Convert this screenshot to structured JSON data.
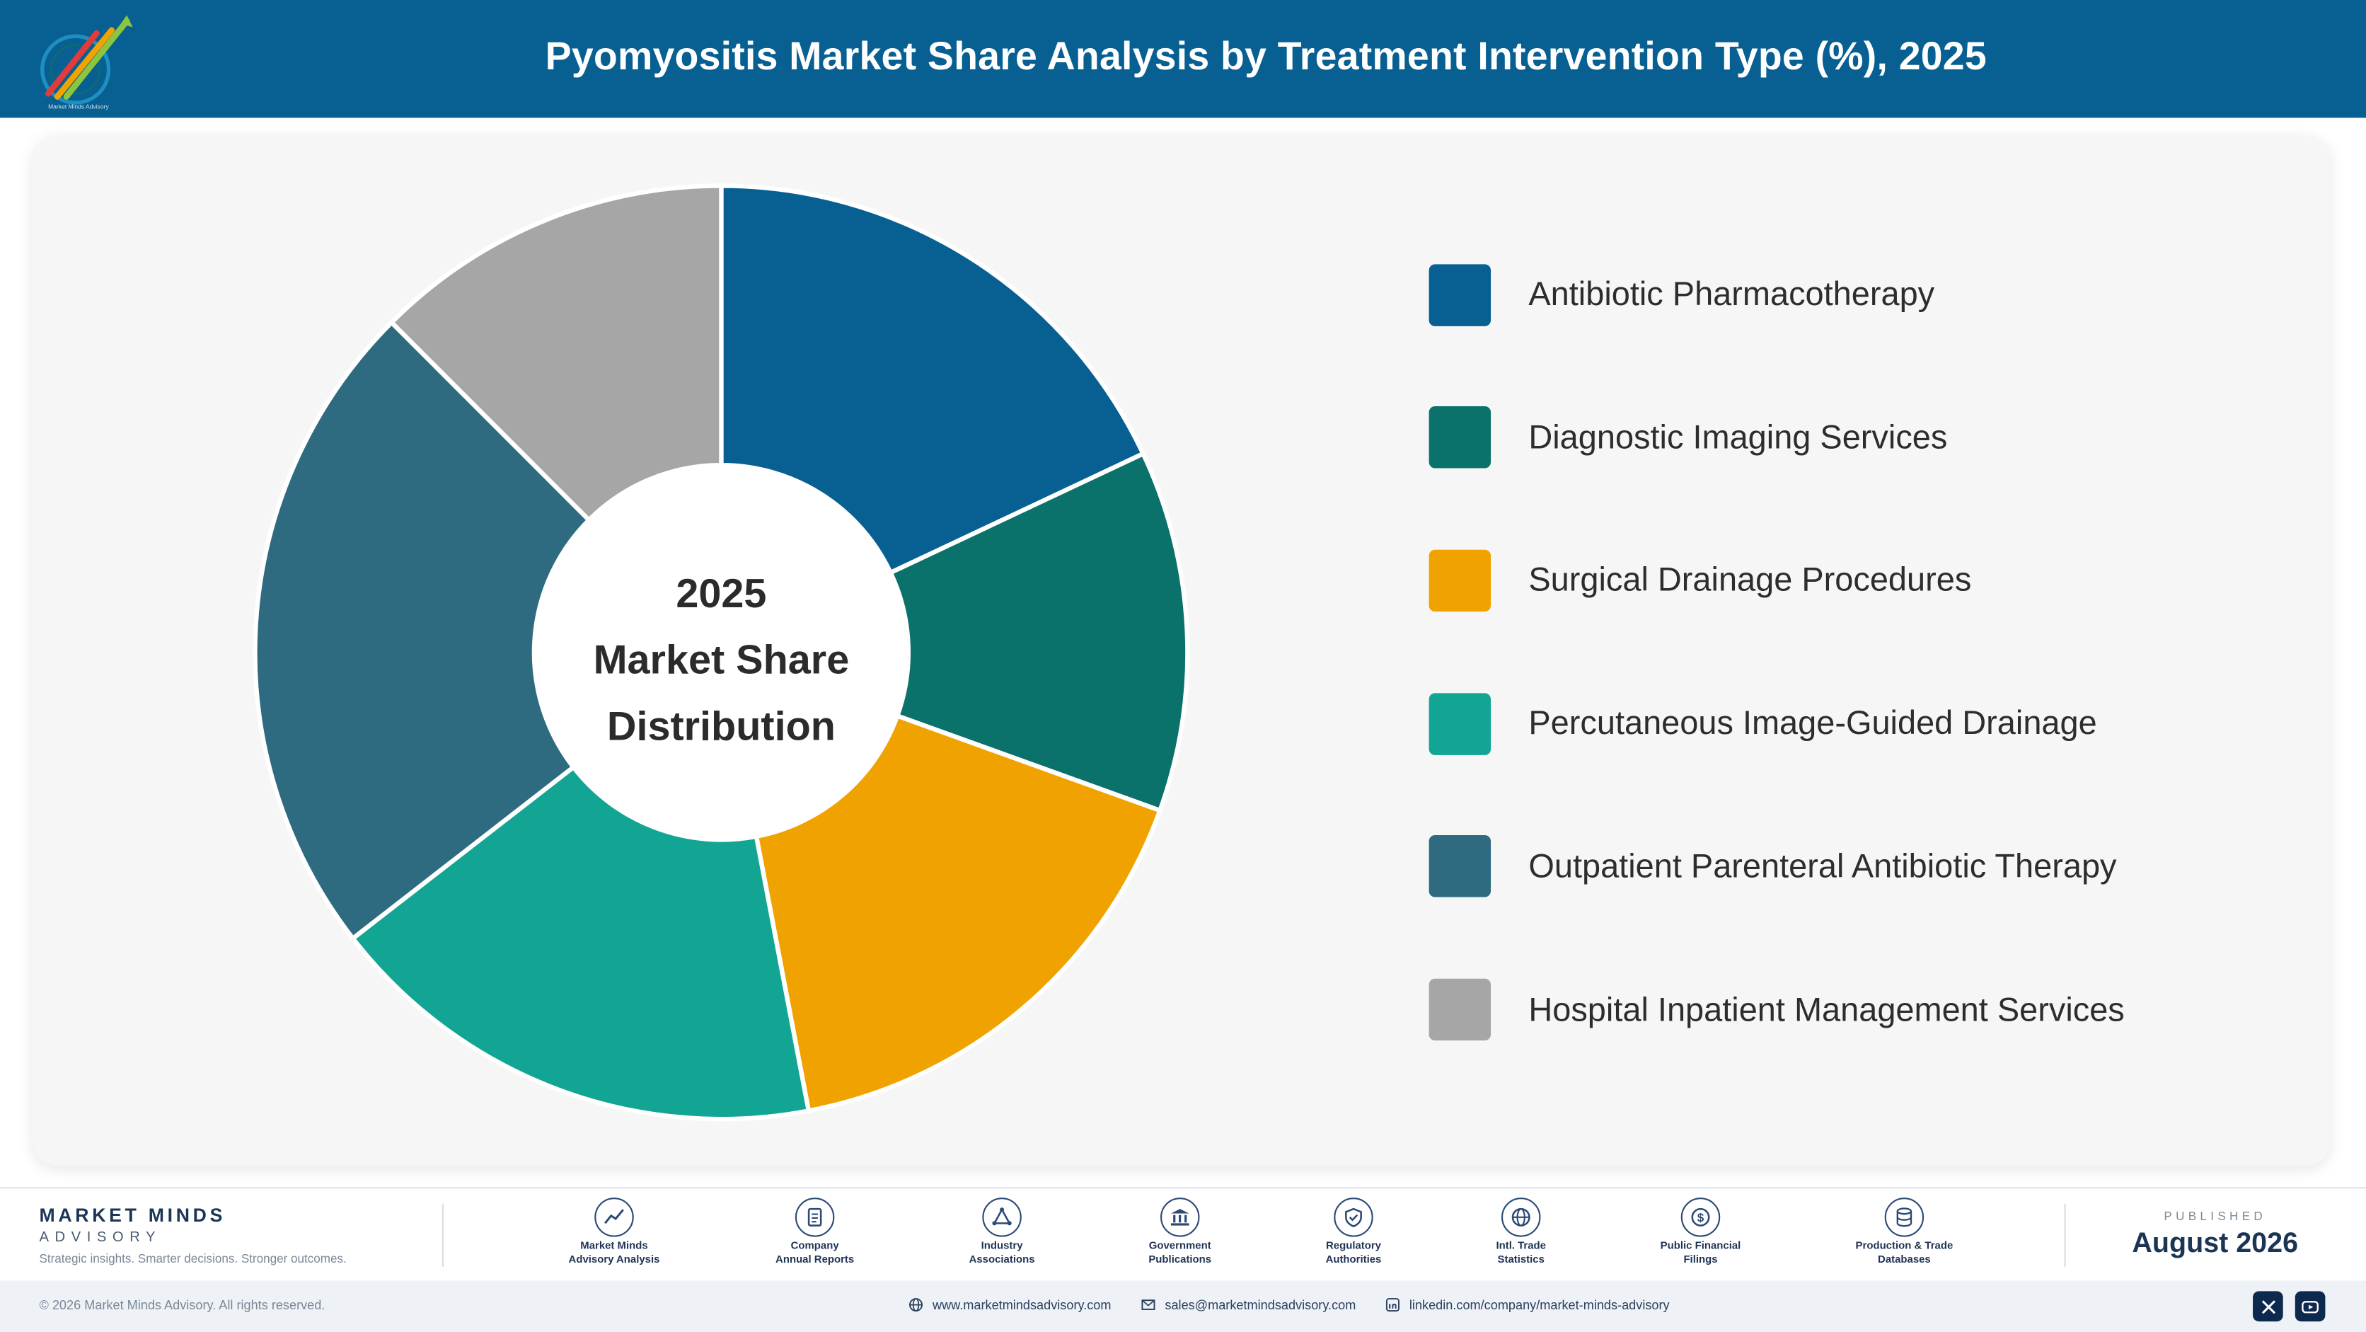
{
  "header": {
    "title": "Pyomyositis Market Share Analysis by Treatment Intervention Type (%), 2025",
    "logo_icon": "market-minds-logo-icon",
    "logo_text": "Market Minds Advisory"
  },
  "colors": {
    "header_bg": "#075f92",
    "card_bg": "#f6f6f6",
    "brand_navy": "#1b3555"
  },
  "chart_data": {
    "type": "pie",
    "variant": "donut",
    "title": "Pyomyositis Market Share Analysis by Treatment Intervention Type (%), 2025",
    "center_label": [
      "2025",
      "Market Share",
      "Distribution"
    ],
    "legend_position": "right",
    "categories": [
      "Antibiotic Pharmacotherapy",
      "Diagnostic Imaging Services",
      "Surgical Drainage Procedures",
      "Percutaneous Image-Guided Drainage",
      "Outpatient Parenteral Antibiotic Therapy",
      "Hospital Inpatient Management Services"
    ],
    "values": [
      18,
      12.5,
      16.5,
      17.5,
      23,
      12.5
    ],
    "colors": [
      "#075f92",
      "#0b716b",
      "#f0a300",
      "#12a594",
      "#2e6b80",
      "#a6a6a6"
    ]
  },
  "footer": {
    "brand_name": "MARKET MINDS",
    "brand_sub": "ADVISORY",
    "tagline": "Strategic insights. Smarter decisions. Stronger outcomes.",
    "sources": [
      {
        "line1": "Market Minds",
        "line2": "Advisory Analysis",
        "icon": "trend-chart-icon"
      },
      {
        "line1": "Company",
        "line2": "Annual Reports",
        "icon": "document-icon"
      },
      {
        "line1": "Industry",
        "line2": "Associations",
        "icon": "network-icon"
      },
      {
        "line1": "Government",
        "line2": "Publications",
        "icon": "government-building-icon"
      },
      {
        "line1": "Regulatory",
        "line2": "Authorities",
        "icon": "shield-check-icon"
      },
      {
        "line1": "Intl. Trade",
        "line2": "Statistics",
        "icon": "globe-icon"
      },
      {
        "line1": "Public Financial",
        "line2": "Filings",
        "icon": "dollar-coin-icon"
      },
      {
        "line1": "Production & Trade",
        "line2": "Databases",
        "icon": "database-icon"
      }
    ],
    "published_label": "PUBLISHED",
    "published_date": "August 2026"
  },
  "bottombar": {
    "copyright": "© 2026 Market Minds Advisory. All rights reserved.",
    "website": "www.marketmindsadvisory.com",
    "email": "sales@marketmindsadvisory.com",
    "linkedin": "linkedin.com/company/market-minds-advisory"
  }
}
